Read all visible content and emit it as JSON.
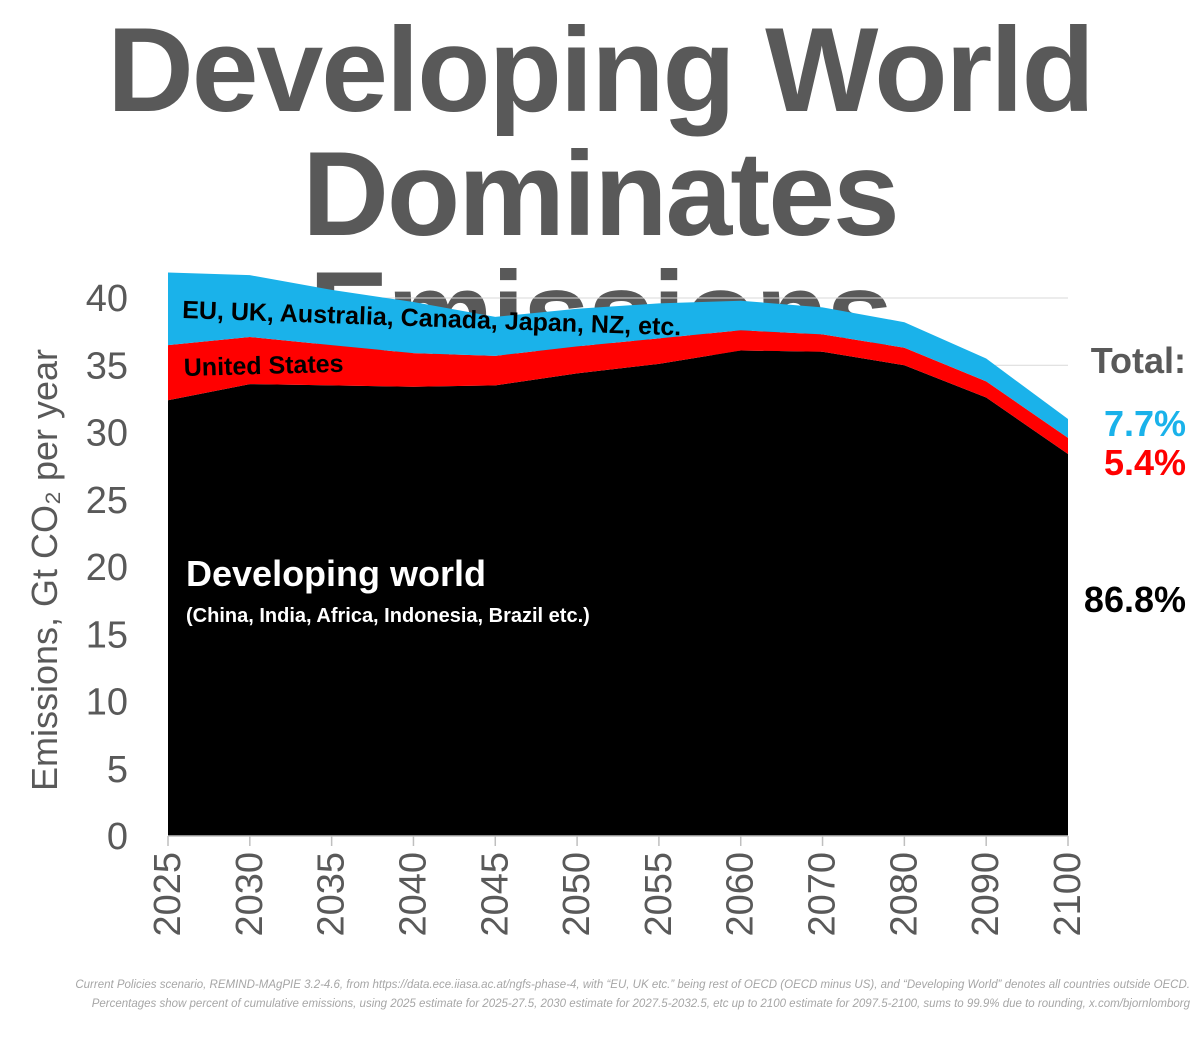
{
  "title": {
    "line1": "Developing World",
    "line2": "Dominates Emissions"
  },
  "chart_data": {
    "type": "area",
    "stacked": true,
    "categories": [
      "2025",
      "2030",
      "2035",
      "2040",
      "2045",
      "2050",
      "2055",
      "2060",
      "2070",
      "2080",
      "2090",
      "2100"
    ],
    "series": [
      {
        "name": "Developing world",
        "color": "#000000",
        "values": [
          32.4,
          33.6,
          33.5,
          33.4,
          33.5,
          34.4,
          35.1,
          36.1,
          36.0,
          35.0,
          32.6,
          28.4
        ]
      },
      {
        "name": "United States",
        "color": "#ff0000",
        "values": [
          4.1,
          3.5,
          3.0,
          2.5,
          2.2,
          2.0,
          1.9,
          1.5,
          1.3,
          1.3,
          1.2,
          1.2
        ]
      },
      {
        "name": "EU, UK, Australia, Canada, Japan, NZ, etc.",
        "color": "#1ab2ea",
        "values": [
          5.4,
          4.6,
          4.1,
          3.8,
          2.9,
          2.8,
          2.6,
          2.2,
          2.0,
          1.9,
          1.7,
          1.4
        ]
      }
    ],
    "series_labels": {
      "rest_oecd": "EU, UK, Australia, Canada, Japan, NZ, etc.",
      "us": "United States",
      "developing": "Developing world",
      "developing_sub": "(China, India, Africa, Indonesia, Brazil etc.)"
    },
    "ylabel": "Emissions, Gt CO₂ per year",
    "xlabel": "",
    "ylim": [
      0,
      40
    ],
    "yticks": [
      0,
      5,
      10,
      15,
      20,
      25,
      30,
      35,
      40
    ],
    "grid": true,
    "totals": {
      "heading": "Total:",
      "rest_oecd": "7.7%",
      "us": "5.4%",
      "developing": "86.8%"
    }
  },
  "footnote": "Current Policies scenario, REMIND-MAgPIE 3.2-4.6, from https://data.ece.iiasa.ac.at/ngfs-phase-4, with “EU, UK etc.” being rest of OECD (OECD minus US), and “Developing World” denotes all countries outside OECD. Percentages show percent of cumulative emissions, using 2025 estimate for 2025-27.5, 2030 estimate for 2027.5-2032.5, etc up to 2100 estimate for 2097.5-2100, sums to 99.9% due to rounding, x.com/bjornlomborg"
}
